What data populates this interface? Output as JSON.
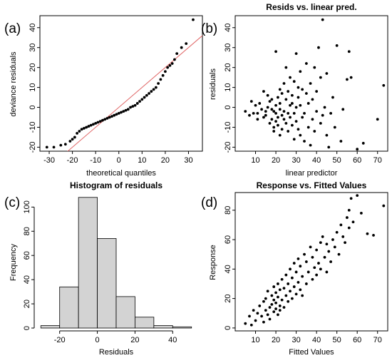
{
  "chart_data": [
    {
      "id": "a",
      "type": "scatter",
      "panel_label": "(a)",
      "title": "",
      "xlabel": "theoretical quantiles",
      "ylabel": "deviance residuals",
      "xlim": [
        -34,
        36
      ],
      "ylim": [
        -22,
        46
      ],
      "xticks": [
        -30,
        -20,
        -10,
        0,
        10,
        20,
        30
      ],
      "yticks": [
        -20,
        -10,
        0,
        10,
        20,
        30,
        40
      ],
      "reference_line": {
        "color": "#e06666",
        "points": [
          [
            -25,
            -25
          ],
          [
            36,
            36
          ]
        ]
      },
      "x": [
        -31,
        -28,
        -25,
        -23,
        -21,
        -20,
        -19,
        -18,
        -17,
        -16,
        -15,
        -14,
        -13,
        -12,
        -11,
        -10,
        -9,
        -8,
        -7,
        -6,
        -5,
        -4,
        -3,
        -2,
        -1,
        0,
        1,
        2,
        3,
        4,
        5,
        6,
        7,
        8,
        9,
        10,
        11,
        12,
        13,
        14,
        15,
        16,
        17,
        18,
        19,
        20,
        21,
        22,
        23,
        24,
        25,
        27,
        29,
        32
      ],
      "y": [
        -20,
        -20,
        -19,
        -18.5,
        -17,
        -16,
        -15,
        -13,
        -12,
        -11,
        -10.5,
        -10,
        -9.5,
        -9,
        -8.5,
        -8,
        -7.5,
        -7,
        -6.5,
        -6,
        -5.5,
        -5,
        -4.5,
        -4,
        -3.5,
        -3,
        -2.5,
        -2,
        -1.5,
        -1,
        0,
        0.5,
        1,
        2,
        3,
        4,
        5,
        6,
        7,
        8,
        9,
        10,
        12,
        14,
        16,
        18,
        20,
        21,
        22,
        24,
        27,
        30,
        32,
        44
      ]
    },
    {
      "id": "b",
      "type": "scatter",
      "panel_label": "(b)",
      "title": "Resids vs. linear pred.",
      "xlabel": "linear predictor",
      "ylabel": "residuals",
      "xlim": [
        0,
        75
      ],
      "ylim": [
        -22,
        46
      ],
      "xticks": [
        10,
        20,
        30,
        40,
        50,
        60,
        70
      ],
      "yticks": [
        -20,
        -10,
        0,
        10,
        20,
        30,
        40
      ],
      "x": [
        5,
        7,
        8,
        9,
        10,
        11,
        11,
        12,
        13,
        14,
        14,
        15,
        15,
        16,
        16,
        17,
        17,
        18,
        18,
        18,
        19,
        19,
        19,
        20,
        20,
        20,
        20,
        21,
        21,
        21,
        22,
        22,
        22,
        22,
        23,
        23,
        23,
        24,
        24,
        24,
        25,
        25,
        25,
        26,
        26,
        26,
        27,
        27,
        27,
        28,
        28,
        28,
        29,
        29,
        29,
        30,
        30,
        30,
        31,
        31,
        31,
        32,
        32,
        32,
        33,
        33,
        34,
        34,
        35,
        35,
        36,
        36,
        37,
        37,
        38,
        38,
        39,
        39,
        40,
        40,
        41,
        42,
        42,
        43,
        43,
        44,
        45,
        45,
        46,
        47,
        48,
        49,
        50,
        52,
        53,
        55,
        56,
        57,
        60,
        63,
        70,
        73
      ],
      "y": [
        -2,
        -4,
        3,
        -3,
        1,
        -3,
        -6,
        2,
        -1,
        -5,
        8,
        -2,
        -4,
        0,
        6,
        -8,
        3,
        -6,
        -1,
        4,
        -10,
        -2,
        -12,
        -3,
        1,
        -7,
        28,
        5,
        -5,
        -9,
        -1,
        9,
        -14,
        2,
        -4,
        7,
        -11,
        12,
        -2,
        -6,
        -8,
        4,
        20,
        -3,
        8,
        -12,
        1,
        15,
        -5,
        -9,
        6,
        2,
        13,
        -16,
        -3,
        27,
        -7,
        0,
        10,
        -11,
        5,
        -14,
        18,
        1,
        -5,
        9,
        -3,
        -17,
        7,
        22,
        -10,
        2,
        -19,
        12,
        -6,
        4,
        20,
        -12,
        -2,
        8,
        30,
        -8,
        15,
        -4,
        44,
        0,
        17,
        -14,
        -20,
        -3,
        5,
        -10,
        31,
        -17,
        -1,
        14,
        28,
        15,
        -21,
        -18,
        -6,
        11
      ]
    },
    {
      "id": "c",
      "type": "bar",
      "panel_label": "(c)",
      "title": "Histogram of residuals",
      "xlabel": "Residuals",
      "ylabel": "Frequency",
      "xlim": [
        -32,
        52
      ],
      "ylim": [
        0,
        112
      ],
      "xticks": [
        -20,
        0,
        20,
        40
      ],
      "yticks": [
        0,
        20,
        40,
        60,
        80,
        100
      ],
      "bin_edges": [
        -30,
        -20,
        -10,
        0,
        10,
        20,
        30,
        40,
        50
      ],
      "values": [
        2,
        34,
        108,
        74,
        26,
        9,
        2,
        1
      ],
      "bar_color": "#d3d3d3"
    },
    {
      "id": "d",
      "type": "scatter",
      "panel_label": "(d)",
      "title": "Response vs. Fitted Values",
      "xlabel": "Fitted Values",
      "ylabel": "Response",
      "xlim": [
        0,
        75
      ],
      "ylim": [
        -2,
        92
      ],
      "xticks": [
        10,
        20,
        30,
        40,
        50,
        60,
        70
      ],
      "yticks": [
        0,
        20,
        40,
        60,
        80
      ],
      "x": [
        5,
        7,
        8,
        9,
        10,
        11,
        12,
        13,
        14,
        14,
        15,
        15,
        16,
        16,
        17,
        17,
        18,
        18,
        19,
        19,
        19,
        20,
        20,
        20,
        21,
        21,
        21,
        22,
        22,
        22,
        23,
        23,
        24,
        24,
        25,
        25,
        26,
        26,
        27,
        27,
        28,
        28,
        29,
        29,
        30,
        30,
        31,
        31,
        32,
        32,
        33,
        33,
        34,
        35,
        35,
        36,
        37,
        38,
        38,
        39,
        40,
        40,
        41,
        42,
        42,
        43,
        44,
        45,
        45,
        46,
        47,
        48,
        49,
        50,
        51,
        52,
        53,
        54,
        55,
        56,
        56,
        57,
        58,
        60,
        62,
        65,
        68,
        73
      ],
      "y": [
        3,
        8,
        2,
        12,
        5,
        10,
        15,
        8,
        4,
        18,
        12,
        20,
        9,
        25,
        14,
        6,
        22,
        16,
        11,
        28,
        19,
        13,
        24,
        17,
        9,
        30,
        21,
        15,
        26,
        12,
        33,
        19,
        27,
        14,
        22,
        36,
        18,
        30,
        25,
        40,
        20,
        34,
        28,
        44,
        23,
        38,
        31,
        47,
        26,
        42,
        35,
        22,
        50,
        30,
        45,
        38,
        55,
        33,
        48,
        41,
        36,
        53,
        44,
        58,
        40,
        62,
        48,
        38,
        57,
        52,
        45,
        60,
        55,
        65,
        50,
        70,
        62,
        58,
        75,
        68,
        80,
        88,
        72,
        90,
        78,
        64,
        63,
        83
      ]
    }
  ]
}
